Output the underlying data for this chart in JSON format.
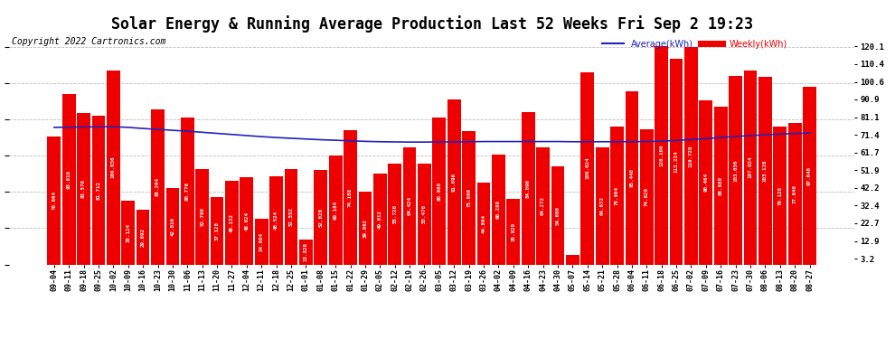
{
  "title": "Solar Energy & Running Average Production Last 52 Weeks Fri Sep 2 19:23",
  "copyright": "Copyright 2022 Cartronics.com",
  "legend_avg": "Average(kWh)",
  "legend_weekly": "Weekly(kWh)",
  "bar_color": "#ee0000",
  "avg_line_color": "#2222bb",
  "background_color": "#ffffff",
  "plot_bg_color": "#ffffff",
  "grid_color": "#bbbbbb",
  "xlabels": [
    "09-04",
    "09-11",
    "09-18",
    "09-25",
    "10-02",
    "10-09",
    "10-16",
    "10-23",
    "10-30",
    "11-06",
    "11-13",
    "11-20",
    "11-27",
    "12-04",
    "12-11",
    "12-18",
    "12-25",
    "01-01",
    "01-08",
    "01-15",
    "01-22",
    "01-29",
    "02-05",
    "02-12",
    "02-19",
    "02-26",
    "03-05",
    "03-12",
    "03-19",
    "03-26",
    "04-02",
    "04-09",
    "04-16",
    "04-23",
    "04-30",
    "05-07",
    "05-14",
    "05-21",
    "05-28",
    "06-04",
    "06-11",
    "06-18",
    "06-25",
    "07-02",
    "07-09",
    "07-16",
    "07-23",
    "07-30",
    "08-06",
    "08-13",
    "08-20",
    "08-27"
  ],
  "weekly_values": [
    70.664,
    93.816,
    83.576,
    81.712,
    106.836,
    35.124,
    29.892,
    85.204,
    42.016,
    80.776,
    52.76,
    37.12,
    46.132,
    48.024,
    24.984,
    48.524,
    52.552,
    13.828,
    52.028,
    60.184,
    74.188,
    39.992,
    49.912,
    55.72,
    64.424,
    55.476,
    80.9,
    91.096,
    73.696,
    44.864,
    60.288,
    35.92,
    84.096,
    64.272,
    54.08,
    5.464,
    106.024,
    64.672,
    75.904,
    95.448,
    74.62,
    120.1,
    113.224,
    119.72,
    90.464,
    86.68,
    103.656,
    107.024,
    103.128,
    76.128,
    77.84,
    97.648
  ],
  "avg_values": [
    75.5,
    75.6,
    75.7,
    75.8,
    75.9,
    75.5,
    74.9,
    74.4,
    73.9,
    73.4,
    72.8,
    72.2,
    71.6,
    71.0,
    70.4,
    69.9,
    69.5,
    69.1,
    68.7,
    68.4,
    68.1,
    67.8,
    67.6,
    67.5,
    67.4,
    67.4,
    67.5,
    67.5,
    67.6,
    67.7,
    67.7,
    67.7,
    67.7,
    67.7,
    67.7,
    67.6,
    67.6,
    67.6,
    67.6,
    67.6,
    67.7,
    67.9,
    68.3,
    68.8,
    69.3,
    69.9,
    70.5,
    71.0,
    71.4,
    71.8,
    72.1,
    72.4
  ],
  "yticks_right": [
    3.2,
    12.9,
    22.7,
    32.4,
    42.2,
    51.9,
    61.7,
    71.4,
    81.1,
    90.9,
    100.6,
    110.4,
    120.1
  ],
  "ylim_min": 0,
  "ylim_max": 127,
  "title_fontsize": 12,
  "tick_fontsize": 6.0,
  "bar_label_fontsize": 4.2,
  "copyright_fontsize": 7,
  "legend_fontsize": 7
}
